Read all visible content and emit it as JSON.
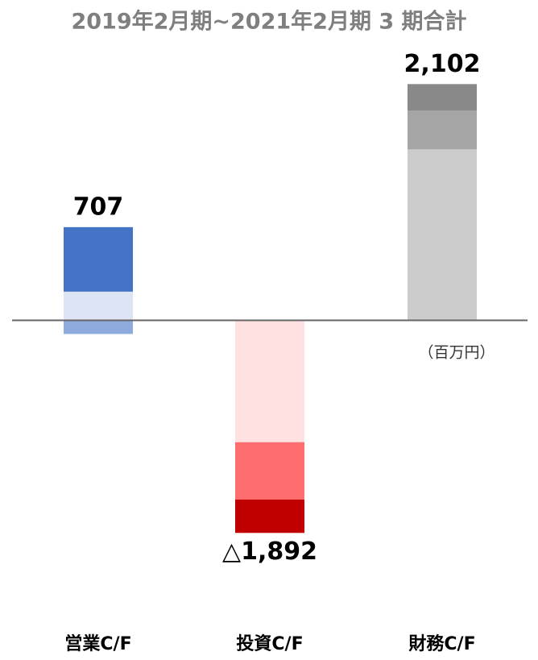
{
  "chart_data": {
    "type": "stacked_bar",
    "title": "2019年2月期~2021年2月期 3 期合計",
    "unit_label": "（百万円）",
    "categories": [
      "営業C/F",
      "投資C/F",
      "財務C/F"
    ],
    "ylim": [
      -2600,
      2420
    ],
    "bars": [
      {
        "total": 707,
        "value_label": "707",
        "segments": [
          {
            "value": 255,
            "color": "#dde4f4"
          },
          {
            "value": 574,
            "color": "#4472c4"
          },
          {
            "value": -122,
            "color": "#8faadc"
          }
        ]
      },
      {
        "total": -1892,
        "value_label": "△1,892",
        "segments": [
          {
            "value": -1085,
            "color": "#ffe1e1"
          },
          {
            "value": -510,
            "color": "#ff6e6e"
          },
          {
            "value": -297,
            "color": "#c00000"
          }
        ]
      },
      {
        "total": 2102,
        "value_label": "2,102",
        "segments": [
          {
            "value": 1521,
            "color": "#cccccc"
          },
          {
            "value": 344,
            "color": "#a5a5a5"
          },
          {
            "value": 237,
            "color": "#898989"
          }
        ]
      }
    ]
  }
}
